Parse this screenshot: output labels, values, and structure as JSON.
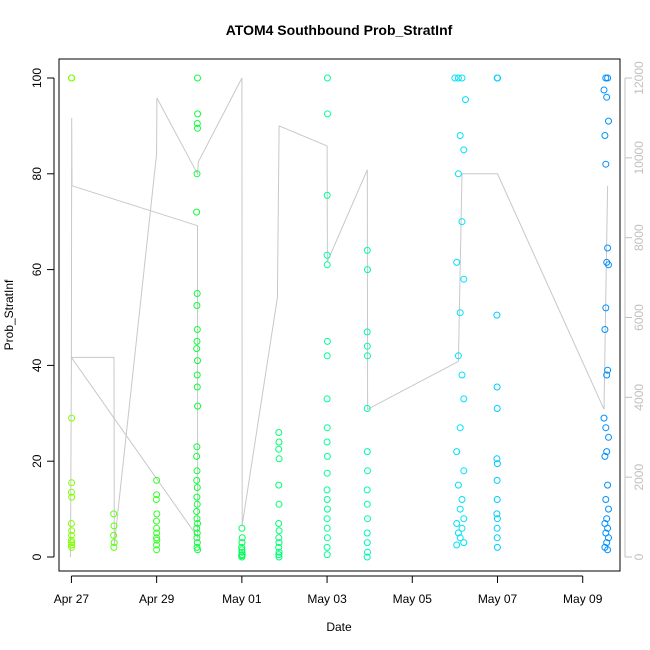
{
  "chart_data": {
    "type": "scatter",
    "title": "ATOM4 Southbound Prob_StratInf",
    "xlabel": "Date",
    "ylabel": "Prob_StratInf",
    "x_ticks": [
      "Apr 27",
      "Apr 29",
      "May 01",
      "May 03",
      "May 05",
      "May 07",
      "May 09"
    ],
    "x_tick_dates": [
      "2014-04-27",
      "2014-04-29",
      "2014-05-01",
      "2014-05-03",
      "2014-05-05",
      "2014-05-07",
      "2014-05-09"
    ],
    "xlim": [
      "2014-04-26T17:00",
      "2014-05-09T21:00"
    ],
    "ylim": [
      0,
      100
    ],
    "y_ticks": [
      0,
      20,
      40,
      60,
      80,
      100
    ],
    "y2_ticks": [
      0,
      2000,
      4000,
      6000,
      8000,
      10000,
      12000
    ],
    "y2lim": [
      0,
      12000
    ],
    "grid": false,
    "legend": "none",
    "colors": {
      "line_series": "#c8c8c8",
      "right_axis": "#c0c0c0",
      "point_color_gradient": [
        "#80ff00",
        "#00ff40",
        "#00ffa0",
        "#00e0ff",
        "#0090ff"
      ]
    },
    "series": [
      {
        "marker": "open-circle",
        "axis": "left",
        "points": [
          [
            "2014-04-27T00:00",
            100
          ],
          [
            "2014-04-27T00:10",
            100
          ],
          [
            "2014-04-27T00:05",
            29
          ],
          [
            "2014-04-27T00:05",
            15.5
          ],
          [
            "2014-04-27T00:00",
            13.5
          ],
          [
            "2014-04-27T00:08",
            12.5
          ],
          [
            "2014-04-27T00:00",
            7
          ],
          [
            "2014-04-27T00:05",
            5.5
          ],
          [
            "2014-04-27T00:03",
            4.5
          ],
          [
            "2014-04-27T00:00",
            3.5
          ],
          [
            "2014-04-27T00:06",
            3
          ],
          [
            "2014-04-27T00:02",
            2.5
          ],
          [
            "2014-04-27T00:07",
            2
          ],
          [
            "2014-04-27T23:50",
            9
          ],
          [
            "2014-04-28T00:00",
            6.5
          ],
          [
            "2014-04-27T23:45",
            4.5
          ],
          [
            "2014-04-28T00:05",
            3
          ],
          [
            "2014-04-27T23:55",
            2
          ],
          [
            "2014-04-29T00:00",
            16
          ],
          [
            "2014-04-29T00:00",
            13
          ],
          [
            "2014-04-28T23:50",
            12
          ],
          [
            "2014-04-29T00:05",
            9
          ],
          [
            "2014-04-28T23:55",
            7.5
          ],
          [
            "2014-04-29T00:00",
            6
          ],
          [
            "2014-04-29T00:02",
            5
          ],
          [
            "2014-04-28T23:58",
            4
          ],
          [
            "2014-04-29T00:05",
            3.5
          ],
          [
            "2014-04-28T23:55",
            2.5
          ],
          [
            "2014-04-29T00:00",
            1.5
          ],
          [
            "2014-04-29T23:00",
            100
          ],
          [
            "2014-04-29T23:05",
            92.5
          ],
          [
            "2014-04-29T22:55",
            90.5
          ],
          [
            "2014-04-29T23:00",
            89.5
          ],
          [
            "2014-04-29T22:45",
            80
          ],
          [
            "2014-04-29T22:30",
            72
          ],
          [
            "2014-04-29T22:50",
            55
          ],
          [
            "2014-04-29T22:40",
            52.5
          ],
          [
            "2014-04-29T22:55",
            47.5
          ],
          [
            "2014-04-29T22:45",
            45
          ],
          [
            "2014-04-29T22:35",
            43.5
          ],
          [
            "2014-04-29T23:00",
            41
          ],
          [
            "2014-04-29T22:50",
            38
          ],
          [
            "2014-04-29T22:55",
            35.5
          ],
          [
            "2014-04-29T23:05",
            31.5
          ],
          [
            "2014-04-29T22:40",
            23
          ],
          [
            "2014-04-29T22:30",
            21
          ],
          [
            "2014-04-29T22:45",
            18
          ],
          [
            "2014-04-29T22:35",
            16
          ],
          [
            "2014-04-29T22:55",
            14.5
          ],
          [
            "2014-04-29T22:40",
            12.5
          ],
          [
            "2014-04-29T22:50",
            11
          ],
          [
            "2014-04-29T22:30",
            9.5
          ],
          [
            "2014-04-29T22:45",
            8
          ],
          [
            "2014-04-29T23:00",
            7
          ],
          [
            "2014-04-29T22:35",
            6
          ],
          [
            "2014-04-29T22:50",
            5
          ],
          [
            "2014-04-29T22:40",
            4
          ],
          [
            "2014-04-29T22:55",
            3
          ],
          [
            "2014-04-29T22:45",
            2
          ],
          [
            "2014-04-29T23:05",
            1.5
          ],
          [
            "2014-05-01T00:00",
            6
          ],
          [
            "2014-05-01T00:10",
            4
          ],
          [
            "2014-05-01T00:05",
            3
          ],
          [
            "2014-04-30T23:55",
            2
          ],
          [
            "2014-05-01T00:00",
            1.5
          ],
          [
            "2014-05-01T00:05",
            1
          ],
          [
            "2014-05-01T00:10",
            0.5
          ],
          [
            "2014-04-30T23:50",
            0.3
          ],
          [
            "2014-05-01T00:02",
            0
          ],
          [
            "2014-05-01T20:50",
            26
          ],
          [
            "2014-05-01T20:55",
            24
          ],
          [
            "2014-05-01T20:45",
            22.5
          ],
          [
            "2014-05-01T21:00",
            20.5
          ],
          [
            "2014-05-01T20:50",
            15
          ],
          [
            "2014-05-01T20:55",
            11
          ],
          [
            "2014-05-01T20:45",
            7
          ],
          [
            "2014-05-01T21:00",
            5.5
          ],
          [
            "2014-05-01T20:50",
            4
          ],
          [
            "2014-05-01T20:55",
            3
          ],
          [
            "2014-05-01T20:45",
            2
          ],
          [
            "2014-05-01T21:00",
            1
          ],
          [
            "2014-05-01T20:50",
            0.5
          ],
          [
            "2014-05-01T20:55",
            0
          ],
          [
            "2014-05-03T00:10",
            100
          ],
          [
            "2014-05-03T00:15",
            92.5
          ],
          [
            "2014-05-03T00:05",
            75.5
          ],
          [
            "2014-05-03T00:00",
            63
          ],
          [
            "2014-05-03T00:05",
            61
          ],
          [
            "2014-05-03T00:10",
            45
          ],
          [
            "2014-05-03T00:05",
            42
          ],
          [
            "2014-05-03T00:00",
            33
          ],
          [
            "2014-05-03T00:05",
            27
          ],
          [
            "2014-05-03T00:00",
            24
          ],
          [
            "2014-05-03T00:10",
            21
          ],
          [
            "2014-05-03T00:05",
            17.5
          ],
          [
            "2014-05-03T00:00",
            14
          ],
          [
            "2014-05-03T00:05",
            12
          ],
          [
            "2014-05-03T00:10",
            10
          ],
          [
            "2014-05-03T00:00",
            8
          ],
          [
            "2014-05-03T00:05",
            6
          ],
          [
            "2014-05-03T00:10",
            4
          ],
          [
            "2014-05-03T00:00",
            2
          ],
          [
            "2014-05-03T00:05",
            0.5
          ],
          [
            "2014-05-03T22:40",
            64
          ],
          [
            "2014-05-03T22:45",
            60
          ],
          [
            "2014-05-03T22:35",
            47
          ],
          [
            "2014-05-03T22:40",
            44
          ],
          [
            "2014-05-03T22:45",
            42
          ],
          [
            "2014-05-03T22:35",
            31
          ],
          [
            "2014-05-03T22:40",
            22
          ],
          [
            "2014-05-03T22:45",
            18
          ],
          [
            "2014-05-03T22:35",
            14
          ],
          [
            "2014-05-03T22:40",
            11
          ],
          [
            "2014-05-03T22:45",
            8
          ],
          [
            "2014-05-03T22:35",
            5
          ],
          [
            "2014-05-03T22:40",
            3
          ],
          [
            "2014-05-03T22:45",
            1
          ],
          [
            "2014-05-03T22:35",
            0
          ],
          [
            "2014-05-06T00:00",
            100
          ],
          [
            "2014-05-06T02:00",
            100
          ],
          [
            "2014-05-06T04:00",
            100
          ],
          [
            "2014-05-06T06:00",
            95.5
          ],
          [
            "2014-05-06T03:00",
            88
          ],
          [
            "2014-05-06T05:00",
            85
          ],
          [
            "2014-05-06T02:00",
            80
          ],
          [
            "2014-05-06T04:00",
            70
          ],
          [
            "2014-05-06T01:00",
            61.5
          ],
          [
            "2014-05-06T05:00",
            58
          ],
          [
            "2014-05-06T03:00",
            51
          ],
          [
            "2014-05-06T02:00",
            42
          ],
          [
            "2014-05-06T04:00",
            38
          ],
          [
            "2014-05-06T05:00",
            33
          ],
          [
            "2014-05-06T03:00",
            27
          ],
          [
            "2014-05-06T01:00",
            22
          ],
          [
            "2014-05-06T05:00",
            18
          ],
          [
            "2014-05-06T02:00",
            15
          ],
          [
            "2014-05-06T04:00",
            12
          ],
          [
            "2014-05-06T03:00",
            10
          ],
          [
            "2014-05-06T05:00",
            8
          ],
          [
            "2014-05-06T01:00",
            7
          ],
          [
            "2014-05-06T04:00",
            6
          ],
          [
            "2014-05-06T02:00",
            5
          ],
          [
            "2014-05-06T03:00",
            4
          ],
          [
            "2014-05-06T05:00",
            3
          ],
          [
            "2014-05-06T01:00",
            2.5
          ],
          [
            "2014-05-07T00:00",
            100
          ],
          [
            "2014-05-06T23:50",
            100
          ],
          [
            "2014-05-06T23:40",
            50.5
          ],
          [
            "2014-05-06T23:45",
            35.5
          ],
          [
            "2014-05-06T23:50",
            31
          ],
          [
            "2014-05-06T23:40",
            20.5
          ],
          [
            "2014-05-06T23:55",
            19.5
          ],
          [
            "2014-05-06T23:45",
            16
          ],
          [
            "2014-05-06T23:50",
            12
          ],
          [
            "2014-05-06T23:40",
            9
          ],
          [
            "2014-05-06T23:55",
            8
          ],
          [
            "2014-05-06T23:45",
            6
          ],
          [
            "2014-05-06T23:50",
            4
          ],
          [
            "2014-05-06T23:55",
            2
          ],
          [
            "2014-05-09T13:00",
            100
          ],
          [
            "2014-05-09T14:00",
            100
          ],
          [
            "2014-05-09T12:00",
            97.5
          ],
          [
            "2014-05-09T13:30",
            96
          ],
          [
            "2014-05-09T14:30",
            91
          ],
          [
            "2014-05-09T12:30",
            88
          ],
          [
            "2014-05-09T13:00",
            82
          ],
          [
            "2014-05-09T14:00",
            64.5
          ],
          [
            "2014-05-09T13:30",
            61.5
          ],
          [
            "2014-05-09T14:30",
            61
          ],
          [
            "2014-05-09T13:00",
            52
          ],
          [
            "2014-05-09T12:30",
            47.5
          ],
          [
            "2014-05-09T14:00",
            39
          ],
          [
            "2014-05-09T13:30",
            38
          ],
          [
            "2014-05-09T12:00",
            29
          ],
          [
            "2014-05-09T13:00",
            27
          ],
          [
            "2014-05-09T14:30",
            25
          ],
          [
            "2014-05-09T13:30",
            22
          ],
          [
            "2014-05-09T12:30",
            21
          ],
          [
            "2014-05-09T14:00",
            15
          ],
          [
            "2014-05-09T13:00",
            12
          ],
          [
            "2014-05-09T14:30",
            10
          ],
          [
            "2014-05-09T13:30",
            8
          ],
          [
            "2014-05-09T12:30",
            7
          ],
          [
            "2014-05-09T14:00",
            6
          ],
          [
            "2014-05-09T13:00",
            5
          ],
          [
            "2014-05-09T14:30",
            4
          ],
          [
            "2014-05-09T13:30",
            3
          ],
          [
            "2014-05-09T12:30",
            2
          ],
          [
            "2014-05-09T14:00",
            1.5
          ]
        ]
      },
      {
        "marker": "line",
        "axis": "right",
        "description_values": "altitude track on the right axis",
        "points": [
          [
            "2014-04-26T23:30",
            0
          ],
          [
            "2014-04-27T00:00",
            5000
          ],
          [
            "2014-04-27T00:10",
            11000
          ],
          [
            "2014-04-27T00:20",
            9300
          ],
          [
            "2014-04-29T23:00",
            8300
          ],
          [
            "2014-04-29T23:05",
            500
          ],
          [
            "2014-04-27T00:00",
            5000
          ],
          [
            "2014-04-28T00:00",
            5000
          ],
          [
            "2014-04-28T00:10",
            300
          ],
          [
            "2014-04-29T00:00",
            10100
          ],
          [
            "2014-04-29T00:10",
            11500
          ],
          [
            "2014-04-29T23:00",
            9600
          ],
          [
            "2014-04-29T23:30",
            9900
          ],
          [
            "2014-05-01T00:00",
            12000
          ],
          [
            "2014-05-01T00:10",
            800
          ],
          [
            "2014-05-01T20:00",
            6500
          ],
          [
            "2014-05-01T21:00",
            10800
          ],
          [
            "2014-05-03T00:00",
            10300
          ],
          [
            "2014-05-03T00:10",
            7400
          ],
          [
            "2014-05-03T22:40",
            9700
          ],
          [
            "2014-05-03T22:50",
            3700
          ],
          [
            "2014-05-06T02:00",
            4900
          ],
          [
            "2014-05-06T04:00",
            9600
          ],
          [
            "2014-05-06T22:00",
            9600
          ],
          [
            "2014-05-07T00:00",
            9600
          ],
          [
            "2014-05-09T12:00",
            3700
          ],
          [
            "2014-05-09T14:00",
            9300
          ]
        ]
      }
    ]
  }
}
